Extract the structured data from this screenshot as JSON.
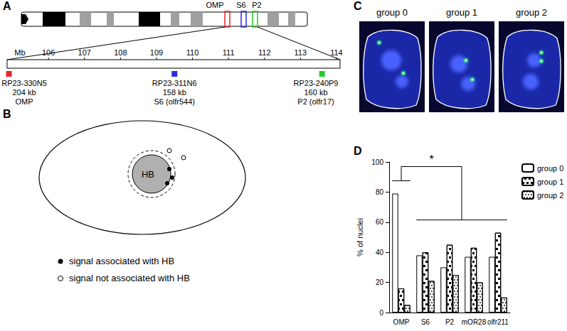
{
  "panel_labels": [
    "A",
    "B",
    "C",
    "D"
  ],
  "panel_a": {
    "chromosome_labels": [
      "OMP",
      "S6",
      "P2"
    ],
    "scale": {
      "label": "Mb",
      "xlim": [
        104.85,
        114.1
      ],
      "xticks": [
        106,
        107,
        108,
        109,
        110,
        111,
        112,
        113,
        114
      ]
    },
    "bacs": [
      {
        "name": "RP23-330N5",
        "size": "204 kb",
        "gene": "OMP",
        "position": 104.9,
        "color": "#e8262b"
      },
      {
        "name": "RP23-311N6",
        "size": "158 kb",
        "gene": "S6 (olfr544)",
        "position": 109.5,
        "color": "#2a2ae0"
      },
      {
        "name": "RP23-240P9",
        "size": "160 kb",
        "gene": "P2 (olfr17)",
        "position": 113.6,
        "color": "#22cc2a"
      }
    ]
  },
  "panel_b": {
    "nucleolus_label": "HB",
    "legend": [
      {
        "marker": "filled",
        "text": "signal associated with HB"
      },
      {
        "marker": "open",
        "text": "signal not associated with HB"
      }
    ]
  },
  "panel_c": {
    "images": [
      {
        "title": "group 0"
      },
      {
        "title": "group 1"
      },
      {
        "title": "group 2"
      }
    ]
  },
  "chart_data": {
    "type": "bar",
    "categories": [
      "OMP",
      "S6",
      "P2",
      "mOR28",
      "olfr211"
    ],
    "series": [
      {
        "name": "group 0",
        "color": "#ffffff",
        "values": [
          79,
          38,
          30,
          37,
          37
        ]
      },
      {
        "name": "group 1",
        "color": "#000000",
        "values": [
          16,
          40,
          45,
          43,
          53
        ]
      },
      {
        "name": "group 2",
        "color": "#555555",
        "values": [
          5,
          21,
          25,
          20,
          10
        ]
      }
    ],
    "ylabel": "% of nuclei",
    "ylim": [
      0,
      100
    ],
    "yticks": [
      0,
      20,
      40,
      60,
      80,
      100
    ],
    "grid": false,
    "legend": "upper right",
    "annotations": [
      {
        "text": "*"
      }
    ]
  }
}
